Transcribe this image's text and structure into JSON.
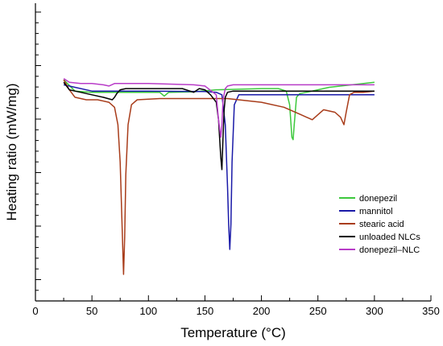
{
  "chart_data": {
    "type": "line",
    "title": "",
    "xlabel": "Temperature (°C)",
    "ylabel": "Heating ratio (mW/mg)",
    "xlim": [
      0,
      350
    ],
    "x_ticks": [
      "0",
      "50",
      "100",
      "150",
      "200",
      "250",
      "300",
      "350"
    ],
    "y_tick_labels": false,
    "grid": false,
    "legend_position": "right",
    "series": [
      {
        "name": "donepezil",
        "color": "#3cc83c",
        "x": [
          25,
          35,
          50,
          70,
          90,
          110,
          114,
          118,
          140,
          160,
          200,
          215,
          222,
          225,
          227,
          228,
          229,
          231,
          234,
          240,
          260,
          280,
          300
        ],
        "y": [
          0.78,
          0.735,
          0.73,
          0.73,
          0.73,
          0.73,
          0.715,
          0.73,
          0.732,
          0.74,
          0.745,
          0.745,
          0.735,
          0.68,
          0.55,
          0.54,
          0.6,
          0.71,
          0.725,
          0.73,
          0.75,
          0.76,
          0.77
        ]
      },
      {
        "name": "mannitol",
        "color": "#1a1aa8",
        "x": [
          25,
          50,
          100,
          150,
          160,
          165,
          168,
          170,
          171,
          172,
          173,
          174,
          176,
          180,
          200,
          250,
          290,
          300
        ],
        "y": [
          0.76,
          0.735,
          0.735,
          0.733,
          0.73,
          0.72,
          0.6,
          0.35,
          0.2,
          0.1,
          0.2,
          0.45,
          0.68,
          0.72,
          0.72,
          0.72,
          0.72,
          0.72
        ]
      },
      {
        "name": "stearic acid",
        "color": "#a83c1a",
        "x": [
          25,
          30,
          35,
          45,
          55,
          65,
          70,
          73,
          75,
          76,
          77,
          78,
          79,
          80,
          82,
          85,
          90,
          110,
          150,
          170,
          200,
          220,
          235,
          245,
          250,
          255,
          265,
          270,
          273,
          275,
          278,
          282,
          290,
          300
        ],
        "y": [
          0.78,
          0.74,
          0.71,
          0.7,
          0.7,
          0.69,
          0.67,
          0.6,
          0.45,
          0.3,
          0.15,
          0.0,
          0.15,
          0.4,
          0.6,
          0.68,
          0.7,
          0.705,
          0.705,
          0.705,
          0.69,
          0.67,
          0.64,
          0.62,
          0.64,
          0.66,
          0.65,
          0.63,
          0.6,
          0.65,
          0.72,
          0.73,
          0.73,
          0.735
        ]
      },
      {
        "name": "unloaded NLCs",
        "color": "#000000",
        "x": [
          25,
          30,
          35,
          40,
          50,
          60,
          68,
          70,
          72,
          75,
          80,
          100,
          130,
          140,
          145,
          150,
          155,
          160,
          162,
          164,
          165,
          166,
          167,
          168,
          170,
          175,
          200,
          250,
          290,
          300
        ],
        "y": [
          0.77,
          0.74,
          0.735,
          0.73,
          0.72,
          0.71,
          0.7,
          0.71,
          0.725,
          0.74,
          0.745,
          0.745,
          0.745,
          0.73,
          0.745,
          0.74,
          0.72,
          0.69,
          0.62,
          0.47,
          0.42,
          0.55,
          0.66,
          0.71,
          0.73,
          0.735,
          0.735,
          0.735,
          0.735,
          0.735
        ]
      },
      {
        "name": "donepezil–NLC",
        "color": "#b83cc8",
        "x": [
          25,
          30,
          40,
          50,
          60,
          65,
          70,
          75,
          80,
          100,
          140,
          150,
          160,
          162,
          164,
          165,
          166,
          168,
          170,
          175,
          200,
          250,
          300
        ],
        "y": [
          0.785,
          0.77,
          0.765,
          0.765,
          0.76,
          0.755,
          0.765,
          0.765,
          0.765,
          0.765,
          0.76,
          0.755,
          0.72,
          0.62,
          0.55,
          0.6,
          0.7,
          0.745,
          0.755,
          0.76,
          0.76,
          0.76,
          0.76
        ]
      }
    ]
  }
}
